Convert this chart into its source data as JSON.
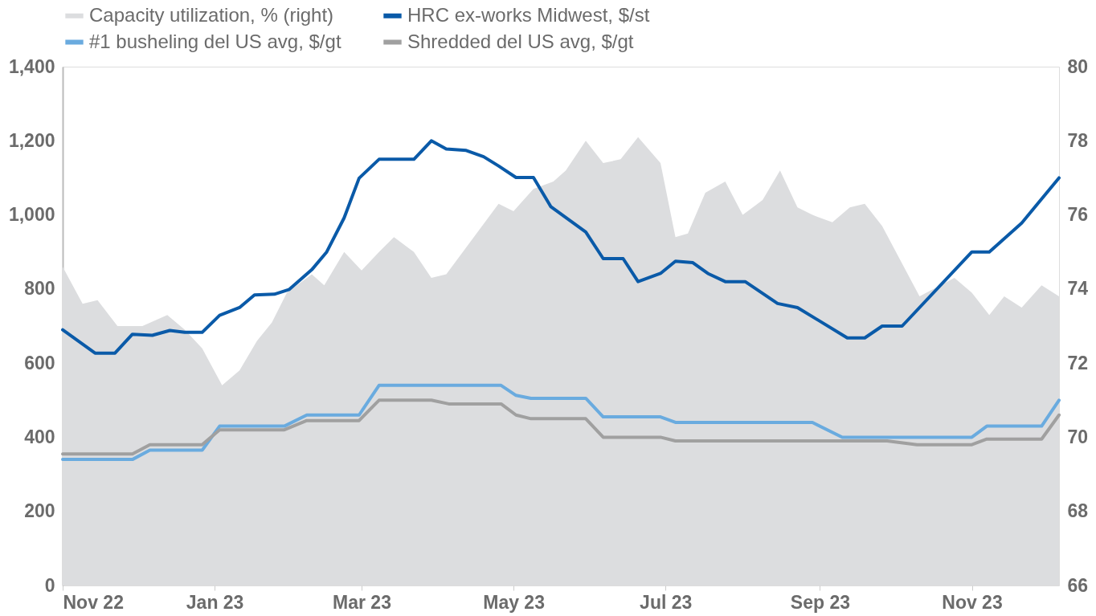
{
  "chart_data": {
    "type": "line",
    "legend": "top",
    "grid": false,
    "line_style": "solid",
    "xlim": [
      "2022-11-01",
      "2023-12-06"
    ],
    "xticks": [
      {
        "value": "2022-11-01",
        "label": "Nov 22"
      },
      {
        "value": "2023-01-01",
        "label": "Jan 23"
      },
      {
        "value": "2023-03-01",
        "label": "Mar 23"
      },
      {
        "value": "2023-05-01",
        "label": "May 23"
      },
      {
        "value": "2023-07-01",
        "label": "Jul 23"
      },
      {
        "value": "2023-09-01",
        "label": "Sep 23"
      },
      {
        "value": "2023-11-01",
        "label": "Nov 23"
      }
    ],
    "ylim": [
      0,
      1400
    ],
    "yticks": [
      0,
      200,
      400,
      600,
      800,
      {
        "value": 1000,
        "label": "1,000"
      },
      {
        "value": 1200,
        "label": "1,200"
      },
      {
        "value": 1400,
        "label": "1,400"
      }
    ],
    "y2lim": [
      66,
      80
    ],
    "y2ticks": [
      66,
      68,
      70,
      72,
      74,
      76,
      78,
      80
    ],
    "series": [
      {
        "name": "Capacity utilization, % (right)",
        "type": "area",
        "axis": "y2",
        "color": "#dcdddf",
        "x": [
          "2022-11-01",
          "2022-11-09",
          "2022-11-15",
          "2022-11-23",
          "2022-12-03",
          "2022-12-13",
          "2022-12-20",
          "2022-12-27",
          "2023-01-04",
          "2023-01-11",
          "2023-01-18",
          "2023-01-24",
          "2023-01-30",
          "2023-02-09",
          "2023-02-14",
          "2023-02-22",
          "2023-03-01",
          "2023-03-08",
          "2023-03-14",
          "2023-03-22",
          "2023-03-29",
          "2023-04-04",
          "2023-04-25",
          "2023-05-01",
          "2023-05-09",
          "2023-05-17",
          "2023-05-22",
          "2023-05-30",
          "2023-06-06",
          "2023-06-13",
          "2023-06-20",
          "2023-06-29",
          "2023-07-05",
          "2023-07-10",
          "2023-07-17",
          "2023-07-25",
          "2023-08-01",
          "2023-08-09",
          "2023-08-16",
          "2023-08-23",
          "2023-08-29",
          "2023-09-06",
          "2023-09-13",
          "2023-09-19",
          "2023-09-26",
          "2023-10-11",
          "2023-10-25",
          "2023-11-01",
          "2023-11-08",
          "2023-11-14",
          "2023-11-21",
          "2023-11-29",
          "2023-12-06"
        ],
        "values": [
          74.6,
          73.6,
          73.7,
          73.0,
          73.0,
          73.3,
          72.9,
          72.4,
          71.4,
          71.8,
          72.6,
          73.1,
          73.9,
          74.4,
          74.1,
          75.0,
          74.5,
          75.0,
          75.4,
          75.0,
          74.3,
          74.4,
          76.3,
          76.1,
          76.7,
          76.9,
          77.2,
          78.0,
          77.4,
          77.5,
          78.1,
          77.4,
          75.4,
          75.5,
          76.6,
          76.9,
          76.0,
          76.4,
          77.2,
          76.2,
          76.0,
          75.8,
          76.2,
          76.3,
          75.7,
          73.8,
          74.3,
          73.9,
          73.3,
          73.8,
          73.5,
          74.1,
          73.8
        ]
      },
      {
        "name": "HRC ex-works Midwest, $/st",
        "color": "#0a5aa8",
        "x": [
          "2022-11-01",
          "2022-11-14",
          "2022-11-22",
          "2022-11-29",
          "2022-12-07",
          "2022-12-14",
          "2022-12-20",
          "2022-12-27",
          "2023-01-03",
          "2023-01-11",
          "2023-01-17",
          "2023-01-25",
          "2023-01-31",
          "2023-02-09",
          "2023-02-15",
          "2023-02-22",
          "2023-02-28",
          "2023-03-08",
          "2023-03-22",
          "2023-03-29",
          "2023-04-04",
          "2023-04-12",
          "2023-04-19",
          "2023-04-25",
          "2023-05-02",
          "2023-05-09",
          "2023-05-16",
          "2023-05-30",
          "2023-06-06",
          "2023-06-14",
          "2023-06-20",
          "2023-06-29",
          "2023-07-05",
          "2023-07-12",
          "2023-07-18",
          "2023-07-25",
          "2023-08-02",
          "2023-08-15",
          "2023-08-23",
          "2023-09-12",
          "2023-09-19",
          "2023-09-26",
          "2023-10-04",
          "2023-11-01",
          "2023-11-08",
          "2023-11-21",
          "2023-12-06"
        ],
        "values": [
          690,
          627,
          627,
          678,
          675,
          688,
          683,
          683,
          729,
          750,
          784,
          786,
          799,
          852,
          900,
          992,
          1099,
          1150,
          1150,
          1200,
          1178,
          1174,
          1157,
          1132,
          1101,
          1101,
          1022,
          954,
          882,
          882,
          820,
          842,
          875,
          871,
          842,
          820,
          820,
          761,
          750,
          668,
          668,
          700,
          700,
          900,
          900,
          978,
          1100
        ]
      },
      {
        "name": "#1 busheling del US avg, $/gt",
        "color": "#6aabdf",
        "x": [
          "2022-11-01",
          "2022-11-29",
          "2022-12-06",
          "2022-12-27",
          "2023-01-03",
          "2023-01-29",
          "2023-02-07",
          "2023-02-28",
          "2023-03-08",
          "2023-04-26",
          "2023-05-02",
          "2023-05-08",
          "2023-05-30",
          "2023-06-06",
          "2023-06-29",
          "2023-07-05",
          "2023-08-29",
          "2023-09-10",
          "2023-11-01",
          "2023-11-07",
          "2023-11-29",
          "2023-12-06"
        ],
        "values": [
          340,
          340,
          365,
          365,
          430,
          430,
          460,
          460,
          540,
          540,
          513,
          505,
          505,
          455,
          455,
          440,
          440,
          400,
          400,
          430,
          430,
          500
        ]
      },
      {
        "name": "Shredded del US avg, $/gt",
        "color": "#a0a0a0",
        "x": [
          "2022-11-01",
          "2022-11-29",
          "2022-12-06",
          "2022-12-27",
          "2023-01-03",
          "2023-01-29",
          "2023-02-07",
          "2023-02-28",
          "2023-03-08",
          "2023-03-29",
          "2023-04-05",
          "2023-04-26",
          "2023-05-02",
          "2023-05-08",
          "2023-05-30",
          "2023-06-06",
          "2023-06-29",
          "2023-07-05",
          "2023-09-28",
          "2023-10-10",
          "2023-11-01",
          "2023-11-07",
          "2023-11-29",
          "2023-12-06"
        ],
        "values": [
          355,
          355,
          380,
          380,
          420,
          420,
          445,
          445,
          500,
          500,
          490,
          490,
          460,
          450,
          450,
          400,
          400,
          390,
          390,
          380,
          380,
          395,
          395,
          460
        ]
      }
    ]
  }
}
